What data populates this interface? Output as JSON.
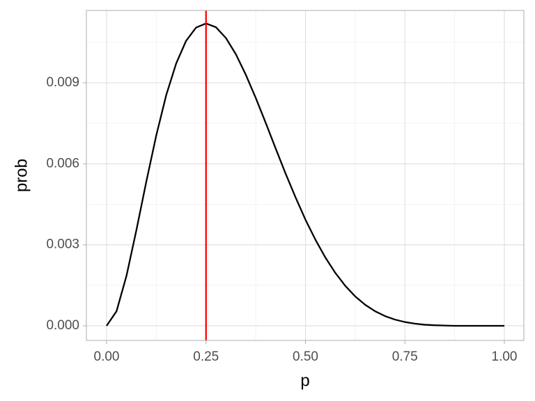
{
  "chart_data": {
    "type": "line",
    "x_label": "p",
    "y_label": "prob",
    "x": [
      0,
      0.025,
      0.05,
      0.075,
      0.1,
      0.125,
      0.15,
      0.175,
      0.2,
      0.225,
      0.25,
      0.275,
      0.3,
      0.325,
      0.35,
      0.375,
      0.4,
      0.425,
      0.45,
      0.475,
      0.5,
      0.525,
      0.55,
      0.575,
      0.6,
      0.625,
      0.65,
      0.675,
      0.7,
      0.725,
      0.75,
      0.775,
      0.8,
      0.825,
      0.85,
      0.875,
      0.9,
      0.925,
      0.95,
      0.975,
      1
    ],
    "series": [
      {
        "color": "#000000",
        "values": [
          0,
          0.00054,
          0.00185,
          0.00355,
          0.00535,
          0.00706,
          0.00855,
          0.00972,
          0.01056,
          0.01105,
          0.0112,
          0.01106,
          0.01066,
          0.01006,
          0.0093,
          0.00844,
          0.00752,
          0.00657,
          0.00564,
          0.00476,
          0.00393,
          0.00319,
          0.00253,
          0.00196,
          0.00148,
          0.00109,
          0.00078,
          0.00054,
          0.00036,
          0.00023,
          0.00014,
          8e-05,
          4e-05,
          2e-05,
          1e-05,
          0,
          0,
          0,
          0,
          0,
          0
        ]
      }
    ],
    "vline": {
      "value": 0.25,
      "color": "#ff0000"
    },
    "xlim": [
      -0.0508,
      1.049
    ],
    "ylim": [
      -0.000542,
      0.011682
    ],
    "xticks": [
      {
        "value": 0,
        "label": "0.00"
      },
      0.25,
      {
        "value": 0.5,
        "label": "0.50"
      },
      0.75,
      {
        "value": 1,
        "label": "1.00"
      }
    ],
    "yticks": [
      {
        "value": 0,
        "label": "0.000"
      },
      0.003,
      0.006,
      0.009
    ],
    "x_minor_ticks": [
      0.125,
      0.375,
      0.625,
      0.875
    ],
    "y_minor_ticks": [
      0.0015,
      0.0045,
      0.0075,
      0.0105
    ],
    "grid": true
  }
}
